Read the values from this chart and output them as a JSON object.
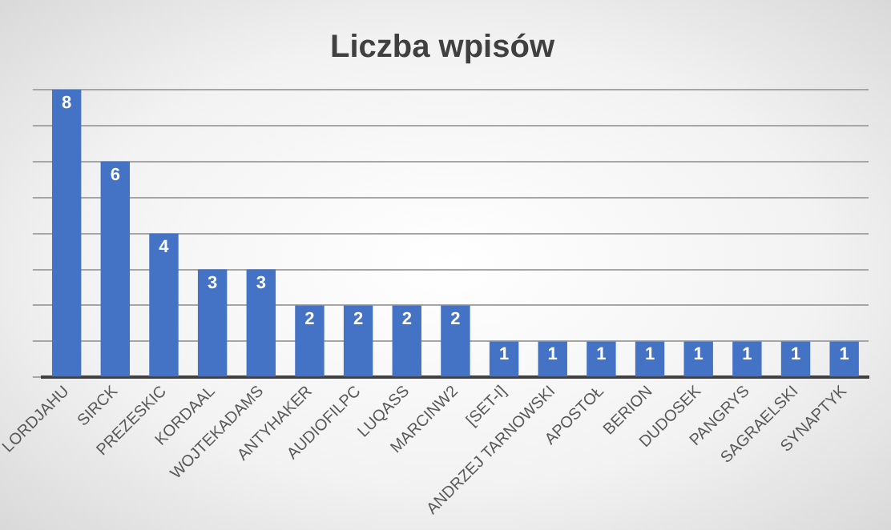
{
  "chart_data": {
    "type": "bar",
    "title": "Liczba wpisów",
    "categories": [
      "LORDJAHU",
      "SIRCK",
      "PREZESKIC",
      "KORDAAL",
      "WOJTEKADAMS",
      "ANTYHAKER",
      "AUDIOFILPC",
      "LUQASS",
      "MARCINW2",
      "[SET-I]",
      "ANDRZEJ TARNOWSKI",
      "APOSTOŁ",
      "BERION",
      "DUDOSEK",
      "PANGRYS",
      "SAGRAELSKI",
      "SYNAPTYK"
    ],
    "values": [
      8,
      6,
      4,
      3,
      3,
      2,
      2,
      2,
      2,
      1,
      1,
      1,
      1,
      1,
      1,
      1,
      1
    ],
    "color": "#4472c4",
    "ylim": [
      0,
      8
    ],
    "yticks": [
      {
        "value": 0,
        "label": null
      },
      {
        "value": 1,
        "label": null
      },
      {
        "value": 2,
        "label": null
      },
      {
        "value": 3,
        "label": null
      },
      {
        "value": 4,
        "label": null
      },
      {
        "value": 5,
        "label": null
      },
      {
        "value": 6,
        "label": null
      },
      {
        "value": 7,
        "label": null
      },
      {
        "value": 8,
        "label": null
      }
    ],
    "grid": "y",
    "tick_labels": "x",
    "data_labels": true,
    "legend": false
  }
}
